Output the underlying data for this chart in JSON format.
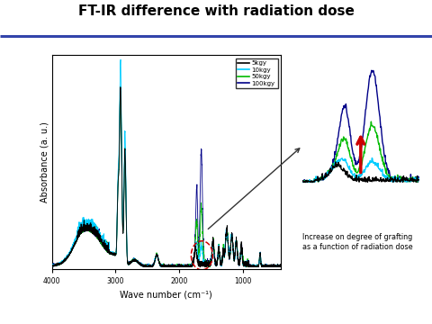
{
  "title": "FT-IR difference with radiation dose",
  "xlabel": "Wave number (cm⁻¹)",
  "ylabel": "Absorbance (a. u.)",
  "legend_labels": [
    "5kgy",
    "10kgy",
    "50kgy",
    "100kgy"
  ],
  "legend_colors": [
    "#000000",
    "#00ccff",
    "#00bb00",
    "#000088"
  ],
  "background_color": "#ffffff",
  "header_line_color": "#3344aa",
  "annotation_text": "Increase on degree of grafting\nas a function of radiation dose",
  "title_fontsize": 11,
  "label_fontsize": 7
}
